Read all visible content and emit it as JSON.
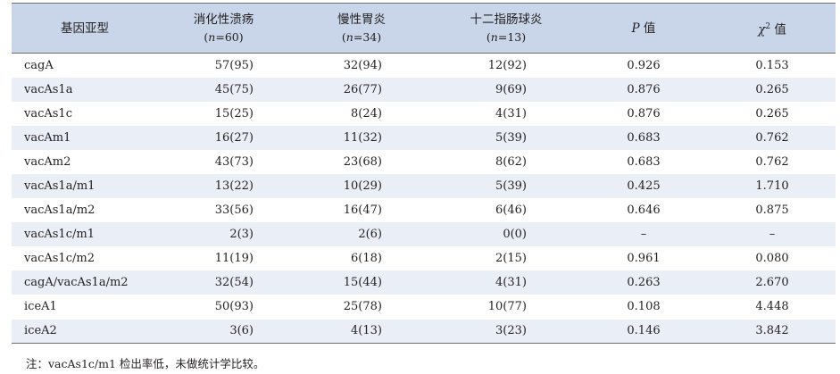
{
  "headers": {
    "genotype": "基因亚型",
    "peptic_ulcer": "消化性溃疡",
    "peptic_ulcer_n": "60",
    "chronic_gastritis": "慢性胃炎",
    "chronic_gastritis_n": "34",
    "duodenal_bulbitis": "十二指肠球炎",
    "duodenal_bulbitis_n": "13",
    "n_prefix": "(",
    "n_var": "n",
    "n_eq": "=",
    "n_suffix": ")",
    "p_symbol": "P",
    "p_text": " 值",
    "chi_symbol": "χ",
    "chi_sup": "2",
    "chi_text": " 值"
  },
  "rows": [
    {
      "genotype": "cagA",
      "pu": "57(95)",
      "cg": "32(94)",
      "db": "12(92)",
      "p": "0.926",
      "chi": "0.153"
    },
    {
      "genotype": "vacAs1a",
      "pu": "45(75)",
      "cg": "26(77)",
      "db": "9(69)",
      "p": "0.876",
      "chi": "0.265"
    },
    {
      "genotype": "vacAs1c",
      "pu": "15(25)",
      "cg": "8(24)",
      "db": "4(31)",
      "p": "0.876",
      "chi": "0.265"
    },
    {
      "genotype": "vacAm1",
      "pu": "16(27)",
      "cg": "11(32)",
      "db": "5(39)",
      "p": "0.683",
      "chi": "0.762"
    },
    {
      "genotype": "vacAm2",
      "pu": "43(73)",
      "cg": "23(68)",
      "db": "8(62)",
      "p": "0.683",
      "chi": "0.762"
    },
    {
      "genotype": "vacAs1a/m1",
      "pu": "13(22)",
      "cg": "10(29)",
      "db": "5(39)",
      "p": "0.425",
      "chi": "1.710"
    },
    {
      "genotype": "vacAs1a/m2",
      "pu": "33(56)",
      "cg": "16(47)",
      "db": "6(46)",
      "p": "0.646",
      "chi": "0.875"
    },
    {
      "genotype": "vacAs1c/m1",
      "pu": "2(3)",
      "cg": "2(6)",
      "db": "0(0)",
      "p": "–",
      "chi": "–"
    },
    {
      "genotype": "vacAs1c/m2",
      "pu": "11(19)",
      "cg": "6(18)",
      "db": "2(15)",
      "p": "0.961",
      "chi": "0.080"
    },
    {
      "genotype": "cagA/vacAs1a/m2",
      "pu": "32(54)",
      "cg": "15(44)",
      "db": "4(31)",
      "p": "0.263",
      "chi": "2.670"
    },
    {
      "genotype": "iceA1",
      "pu": "50(93)",
      "cg": "25(78)",
      "db": "10(77)",
      "p": "0.108",
      "chi": "4.448"
    },
    {
      "genotype": "iceA2",
      "pu": "3(6)",
      "cg": "4(13)",
      "db": "3(23)",
      "p": "0.146",
      "chi": "3.842"
    }
  ],
  "note": "注：vacAs1c/m1 检出率低，未做统计学比较。",
  "colors": {
    "header_bg": "#c9d6ea",
    "stripe_bg": "#eaeef6",
    "rule": "#6d6e71"
  }
}
